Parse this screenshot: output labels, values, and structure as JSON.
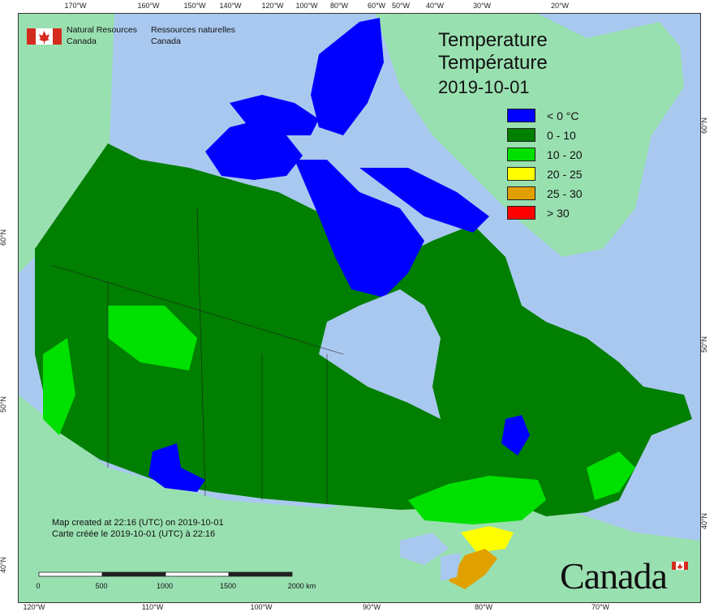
{
  "map": {
    "title_en": "Temperature",
    "title_fr": "Température",
    "date": "2019-10-01",
    "agency": {
      "name_en_1": "Natural Resources",
      "name_en_2": "Canada",
      "name_fr_1": "Ressources naturelles",
      "name_fr_2": "Canada"
    },
    "credits": {
      "line_en": "Map created at 22:16 (UTC) on 2019-10-01",
      "line_fr": "Carte créée le 2019-10-01 (UTC) à 22:16"
    },
    "wordmark": "Canada",
    "legend": [
      {
        "label": "< 0 °C",
        "color": "#0000ff"
      },
      {
        "label": "0 - 10",
        "color": "#007f00"
      },
      {
        "label": "10 - 20",
        "color": "#00e000"
      },
      {
        "label": "20 - 25",
        "color": "#ffff00"
      },
      {
        "label": "25 - 30",
        "color": "#e0a000"
      },
      {
        "label": "> 30",
        "color": "#ff0000"
      }
    ],
    "scale": {
      "labels": [
        "0",
        "500",
        "1000",
        "1500",
        "2000 km"
      ]
    },
    "ticks": {
      "top": [
        "170°W",
        "160°W",
        "150°W",
        "140°W",
        "120°W",
        "100°W",
        "80°W",
        "60°W",
        "50°W",
        "40°W",
        "30°W",
        "20°W"
      ],
      "bottom": [
        "120°W",
        "110°W",
        "100°W",
        "90°W",
        "80°W",
        "70°W"
      ],
      "left": [
        "60°N",
        "50°N",
        "40°N"
      ],
      "right": [
        "60°N",
        "50°N",
        "40°N"
      ]
    },
    "colors": {
      "ocean": "#a9c8ef",
      "neighbour_land": "#99e0b0",
      "cold": "#0000ff",
      "cool": "#007f00",
      "mild": "#00e000",
      "warm": "#ffff00",
      "hot": "#e0a000",
      "lakes": "#a9c8ef"
    }
  }
}
